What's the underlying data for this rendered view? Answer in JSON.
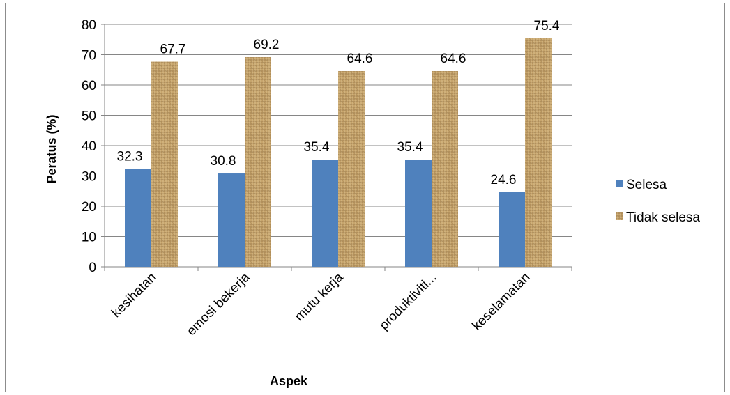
{
  "chart_data": {
    "type": "bar",
    "categories": [
      "kesihatan",
      "emosi bekerja",
      "mutu kerja",
      "produktiviti...",
      "keselamatan"
    ],
    "series": [
      {
        "name": "Selesa",
        "values": [
          32.3,
          30.8,
          35.4,
          35.4,
          24.6
        ],
        "color": "#4f81bd"
      },
      {
        "name": "Tidak selesa",
        "values": [
          67.7,
          69.2,
          64.6,
          64.6,
          75.4
        ],
        "color": "#c9a870"
      }
    ],
    "data_labels": [
      [
        "32.3",
        "30.8",
        "35.4",
        "35.4",
        "24.6"
      ],
      [
        "67.7",
        "69.2",
        "64.6",
        "64.6",
        "75.4"
      ]
    ],
    "yticks": [
      "0",
      "10",
      "20",
      "30",
      "40",
      "50",
      "60",
      "70",
      "80"
    ],
    "xlabel": "Aspek",
    "ylabel": "Peratus (%)",
    "ylim": [
      0,
      80
    ],
    "grid": true,
    "legend_position": "right"
  }
}
